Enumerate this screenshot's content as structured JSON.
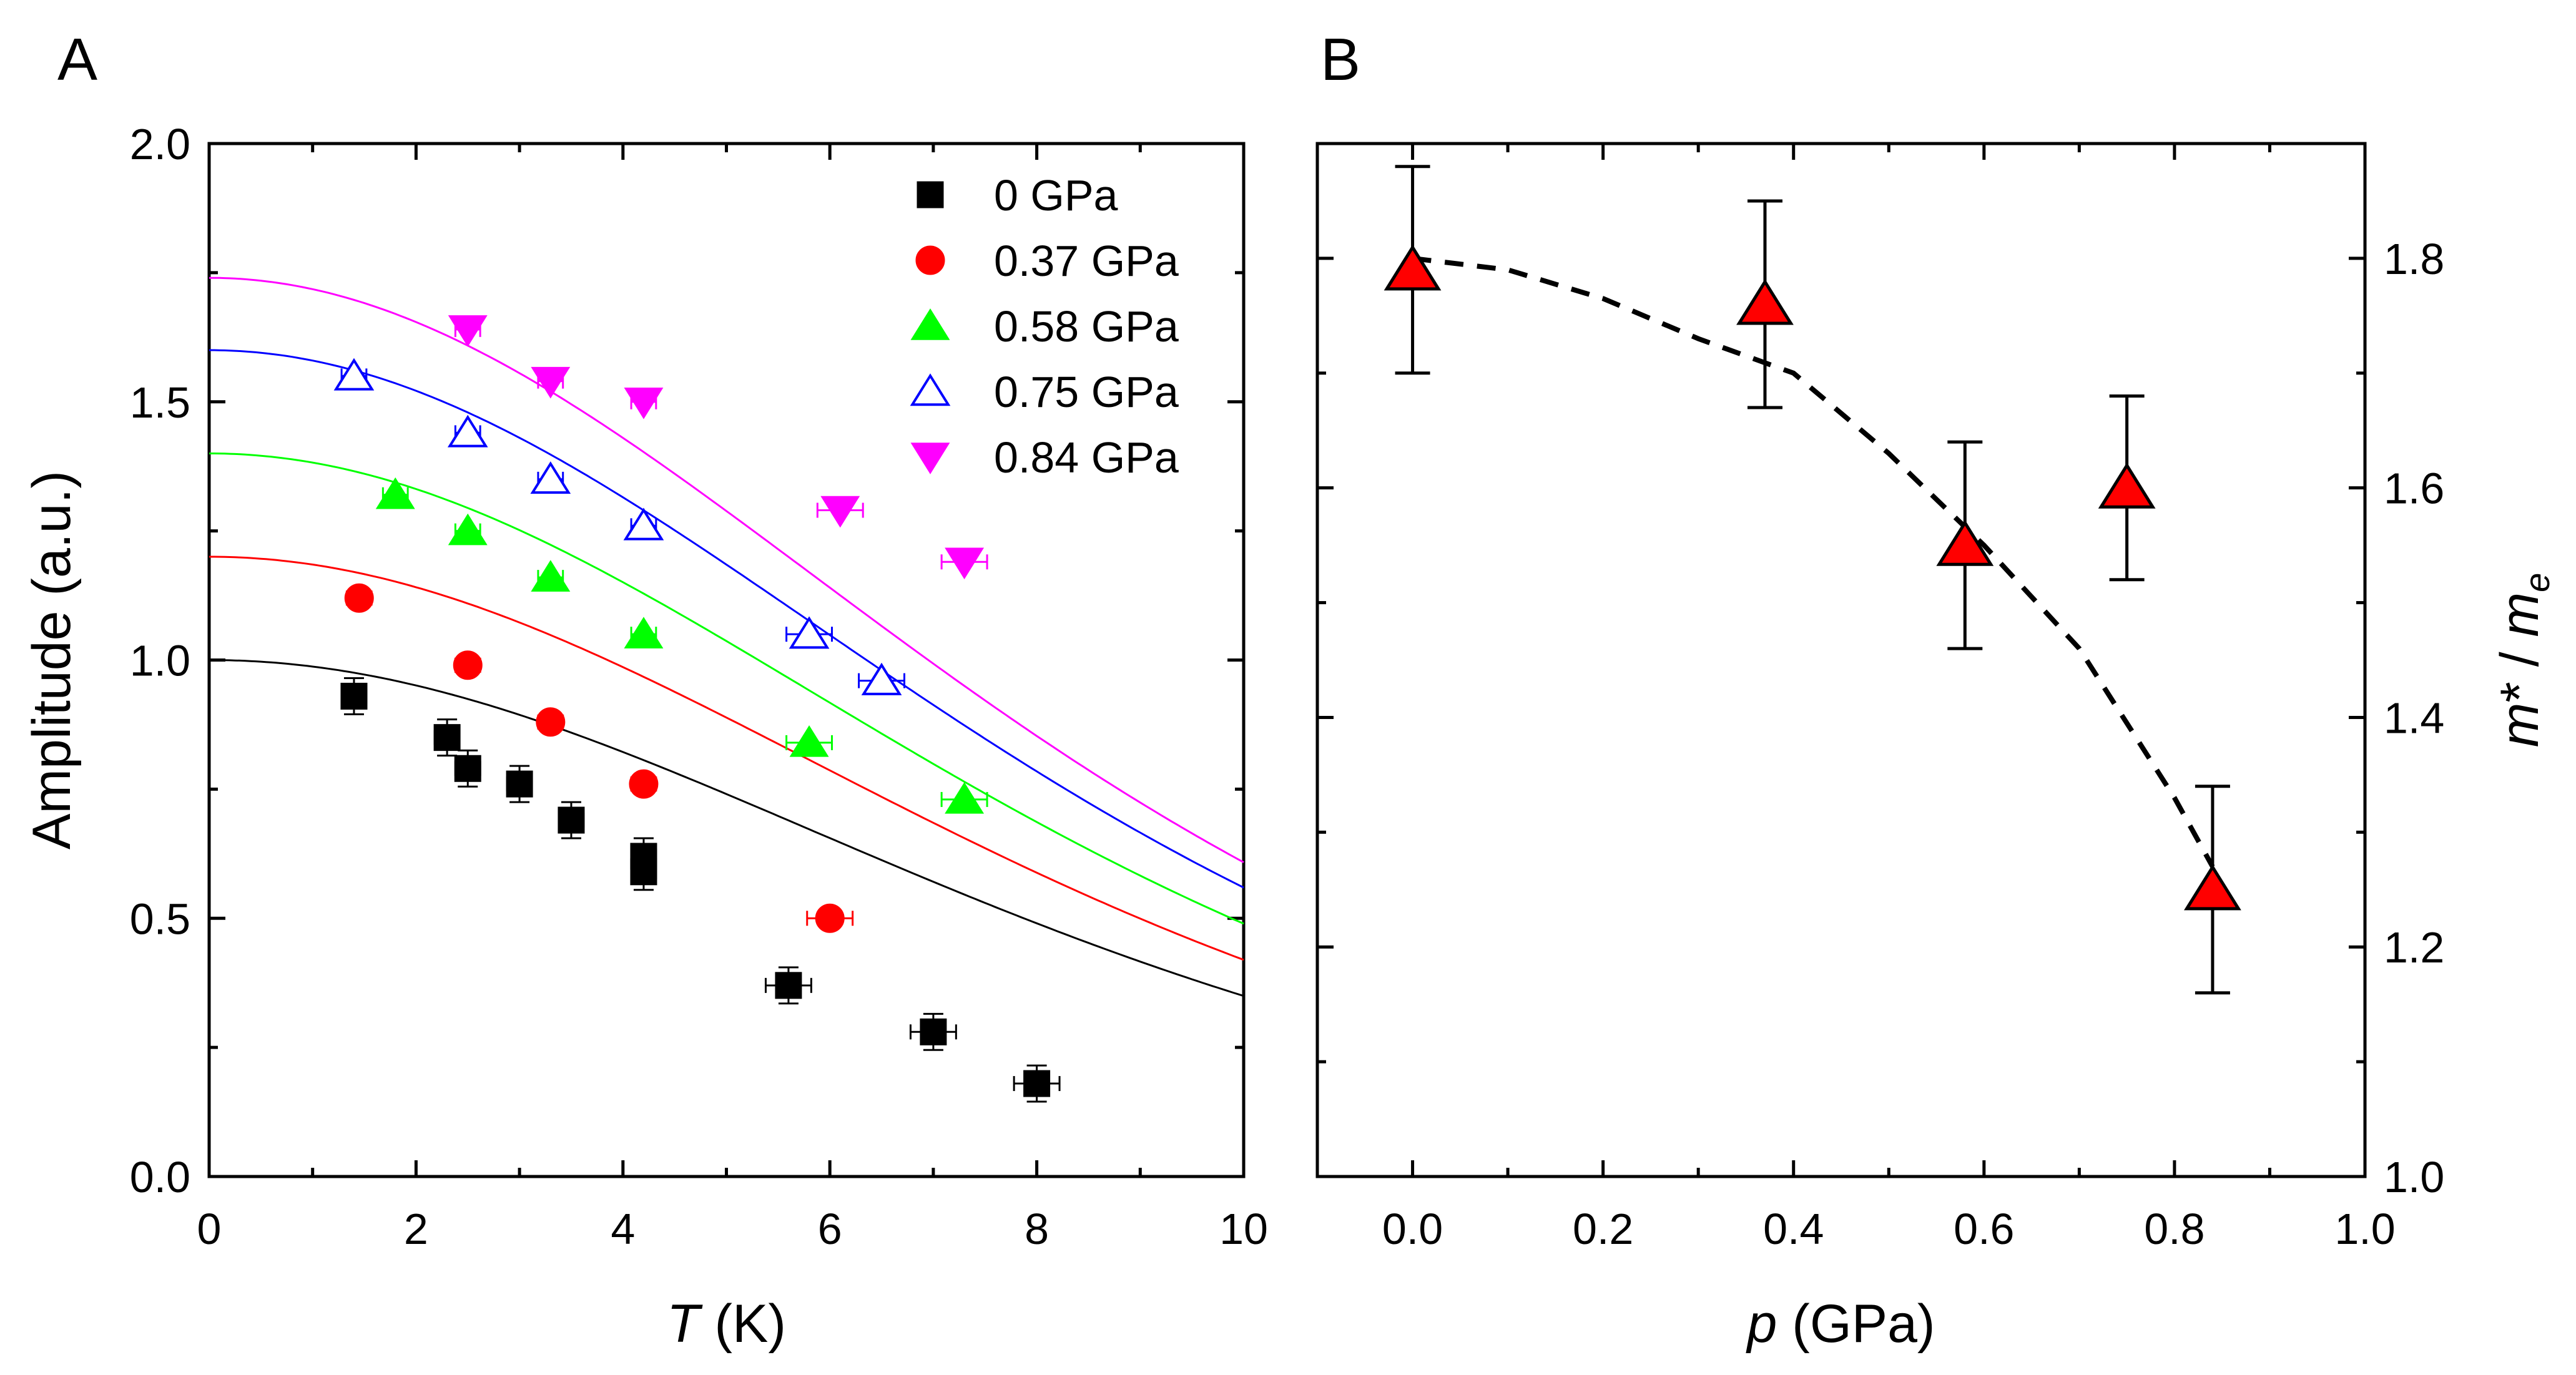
{
  "chart_data": [
    {
      "panel_label": "A",
      "type": "scatter",
      "xlabel": "T",
      "xlabel_unit": " (K)",
      "ylabel": "Amplitude (a.u.)",
      "xlim": [
        0,
        10
      ],
      "ylim": [
        0,
        2.0
      ],
      "xticks": [
        "0",
        "2",
        "4",
        "6",
        "8",
        "10"
      ],
      "yticks": [
        "0.0",
        "0.5",
        "1.0",
        "1.5",
        "2.0"
      ],
      "legend_position": "top-right",
      "series": [
        {
          "name": "0 GPa",
          "marker": "square",
          "filled": true,
          "color": "#000000",
          "fit_a0": 1.0,
          "fit_tau": 0.2,
          "x": [
            1.4,
            2.3,
            2.5,
            3.0,
            3.5,
            4.2,
            4.2,
            5.6,
            7.0,
            8.0
          ],
          "y": [
            0.93,
            0.85,
            0.79,
            0.76,
            0.69,
            0.62,
            0.59,
            0.37,
            0.28,
            0.18
          ]
        },
        {
          "name": "0.37 GPa",
          "marker": "circle",
          "filled": true,
          "color": "#ff0000",
          "fit_a0": 1.2,
          "fit_tau": 0.2,
          "x": [
            1.45,
            2.5,
            3.3,
            4.2,
            6.0
          ],
          "y": [
            1.12,
            0.99,
            0.88,
            0.76,
            0.5
          ]
        },
        {
          "name": "0.58 GPa",
          "marker": "triangle-up",
          "filled": true,
          "color": "#00ff00",
          "fit_a0": 1.4,
          "fit_tau": 0.2,
          "x": [
            1.8,
            2.5,
            3.3,
            4.2,
            5.8,
            7.3
          ],
          "y": [
            1.32,
            1.25,
            1.16,
            1.05,
            0.84,
            0.73
          ]
        },
        {
          "name": "0.75 GPa",
          "marker": "triangle-up",
          "filled": false,
          "color": "#0000ff",
          "fit_a0": 1.6,
          "fit_tau": 0.2,
          "x": [
            1.4,
            2.5,
            3.3,
            4.2,
            5.8,
            6.5
          ],
          "y": [
            1.55,
            1.44,
            1.35,
            1.26,
            1.05,
            0.96
          ]
        },
        {
          "name": "0.84 GPa",
          "marker": "triangle-down",
          "filled": true,
          "color": "#ff00ff",
          "fit_a0": 1.74,
          "fit_tau": 0.2,
          "x": [
            2.5,
            3.3,
            4.2,
            6.1,
            7.3
          ],
          "y": [
            1.64,
            1.54,
            1.5,
            1.29,
            1.19
          ]
        }
      ]
    },
    {
      "panel_label": "B",
      "type": "scatter",
      "xlabel": "p",
      "xlabel_unit": " (GPa)",
      "ylabel": "m* / m_e",
      "y_axis_side": "right",
      "xlim": [
        -0.1,
        1.0
      ],
      "ylim": [
        1.0,
        1.9
      ],
      "xticks": [
        "0.0",
        "0.2",
        "0.4",
        "0.6",
        "0.8",
        "1.0"
      ],
      "yticks": [
        "1.0",
        "1.2",
        "1.4",
        "1.6",
        "1.8"
      ],
      "series": [
        {
          "name": "m*/m_e",
          "marker": "triangle-up",
          "filled": true,
          "color": "#ff0000",
          "x": [
            0.0,
            0.37,
            0.58,
            0.75,
            0.84
          ],
          "y": [
            1.79,
            1.76,
            1.55,
            1.6,
            1.25
          ],
          "yerr": [
            0.09,
            0.09,
            0.09,
            0.08,
            0.09
          ]
        }
      ],
      "fit_line": {
        "style": "dashed",
        "x": [
          0.0,
          0.1,
          0.2,
          0.3,
          0.4,
          0.5,
          0.6,
          0.7,
          0.8,
          0.84
        ],
        "y": [
          1.8,
          1.79,
          1.765,
          1.73,
          1.7,
          1.63,
          1.55,
          1.46,
          1.33,
          1.27
        ]
      }
    }
  ]
}
